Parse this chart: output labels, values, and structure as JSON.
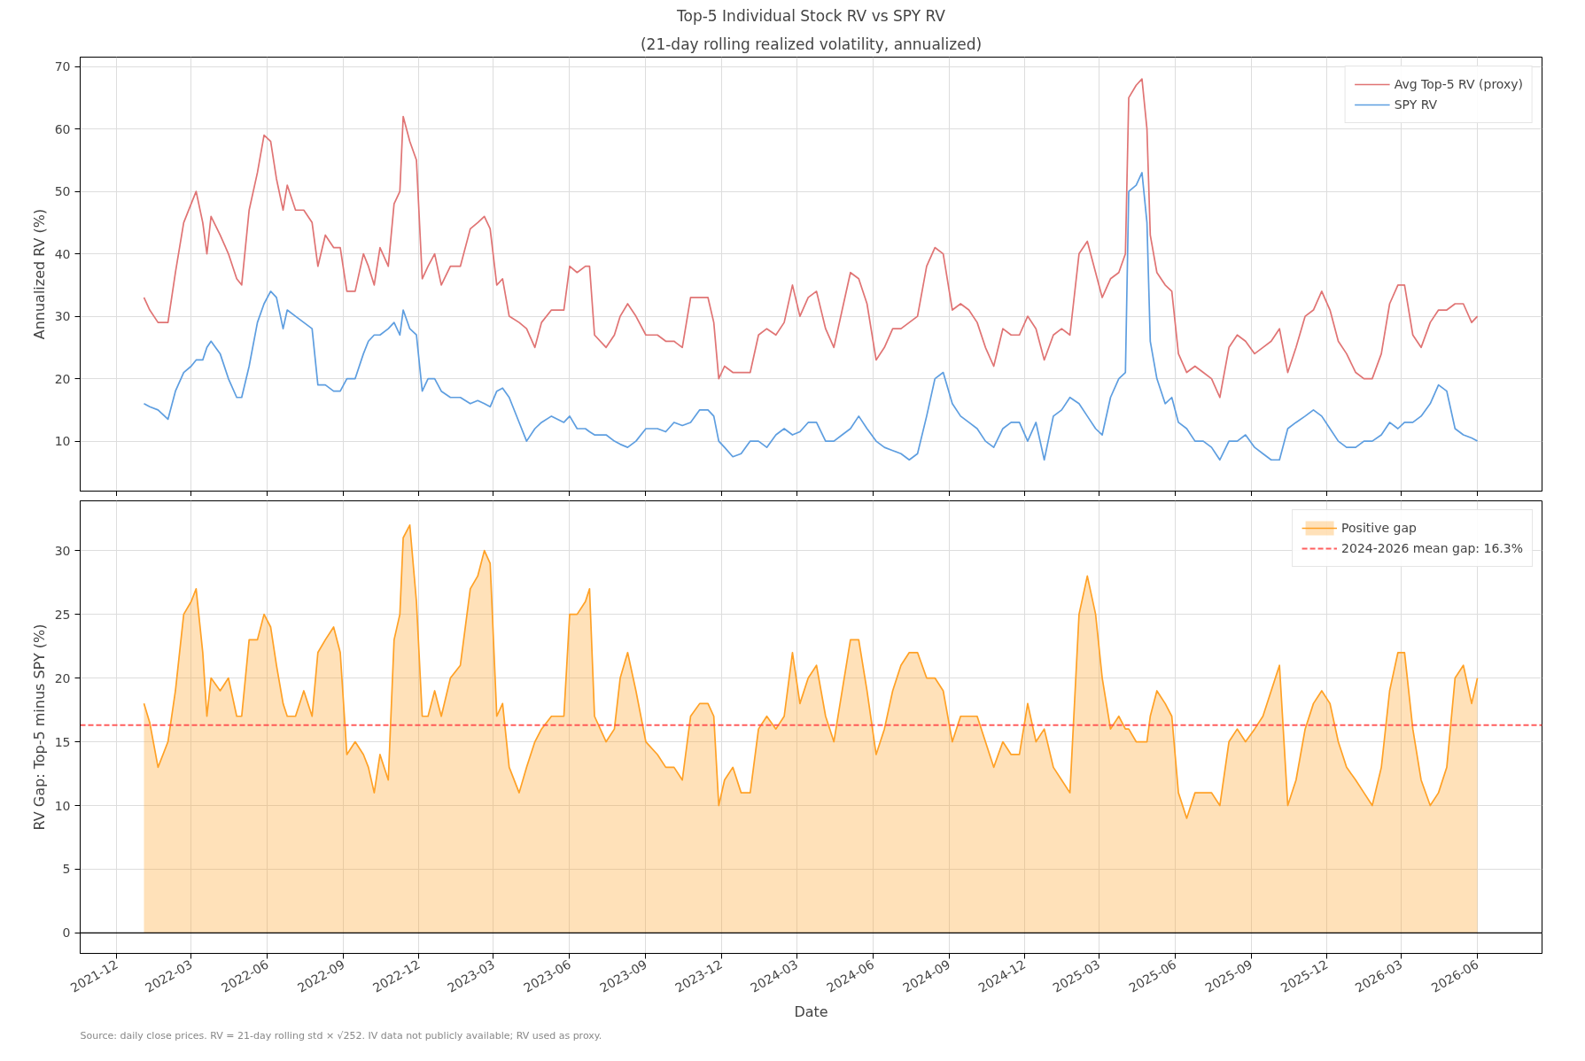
{
  "chart_data": [
    {
      "type": "line",
      "title": "Top-5 Individual Stock RV vs SPY RV",
      "subtitle": "(21-day rolling realized volatility, annualized)",
      "ylabel": "Annualized RV (%)",
      "x": [
        "2022-01-03",
        "2022-01-10",
        "2022-01-20",
        "2022-02-01",
        "2022-02-10",
        "2022-02-20",
        "2022-03-01",
        "2022-03-07",
        "2022-03-15",
        "2022-03-20",
        "2022-03-25",
        "2022-04-05",
        "2022-04-15",
        "2022-04-25",
        "2022-05-01",
        "2022-05-10",
        "2022-05-20",
        "2022-05-28",
        "2022-06-05",
        "2022-06-12",
        "2022-06-20",
        "2022-06-25",
        "2022-07-05",
        "2022-07-15",
        "2022-07-25",
        "2022-08-01",
        "2022-08-10",
        "2022-08-20",
        "2022-08-28",
        "2022-09-05",
        "2022-09-15",
        "2022-09-25",
        "2022-10-01",
        "2022-10-08",
        "2022-10-15",
        "2022-10-25",
        "2022-11-01",
        "2022-11-08",
        "2022-11-12",
        "2022-11-20",
        "2022-11-28",
        "2022-12-05",
        "2022-12-12",
        "2022-12-20",
        "2022-12-28",
        "2023-01-08",
        "2023-01-20",
        "2023-02-01",
        "2023-02-10",
        "2023-02-18",
        "2023-02-25",
        "2023-03-05",
        "2023-03-12",
        "2023-03-20",
        "2023-04-01",
        "2023-04-10",
        "2023-04-20",
        "2023-04-28",
        "2023-05-10",
        "2023-05-25",
        "2023-06-01",
        "2023-06-10",
        "2023-06-20",
        "2023-06-25",
        "2023-07-01",
        "2023-07-15",
        "2023-07-25",
        "2023-08-01",
        "2023-08-10",
        "2023-08-20",
        "2023-09-01",
        "2023-09-15",
        "2023-09-25",
        "2023-10-05",
        "2023-10-15",
        "2023-10-25",
        "2023-11-05",
        "2023-11-15",
        "2023-11-22",
        "2023-11-28",
        "2023-12-05",
        "2023-12-15",
        "2023-12-25",
        "2024-01-05",
        "2024-01-15",
        "2024-01-25",
        "2024-02-05",
        "2024-02-15",
        "2024-02-25",
        "2024-03-05",
        "2024-03-15",
        "2024-03-25",
        "2024-04-05",
        "2024-04-15",
        "2024-04-25",
        "2024-05-05",
        "2024-05-15",
        "2024-05-25",
        "2024-06-05",
        "2024-06-15",
        "2024-06-25",
        "2024-07-05",
        "2024-07-15",
        "2024-07-25",
        "2024-08-05",
        "2024-08-15",
        "2024-08-25",
        "2024-09-05",
        "2024-09-15",
        "2024-09-25",
        "2024-10-05",
        "2024-10-15",
        "2024-10-25",
        "2024-11-05",
        "2024-11-15",
        "2024-11-25",
        "2024-12-05",
        "2024-12-15",
        "2024-12-25",
        "2025-01-05",
        "2025-01-15",
        "2025-01-25",
        "2025-02-05",
        "2025-02-15",
        "2025-02-25",
        "2025-03-05",
        "2025-03-15",
        "2025-03-25",
        "2025-04-02",
        "2025-04-06",
        "2025-04-15",
        "2025-04-22",
        "2025-04-28",
        "2025-05-02",
        "2025-05-10",
        "2025-05-20",
        "2025-05-28",
        "2025-06-05",
        "2025-06-15",
        "2025-06-25",
        "2025-07-05",
        "2025-07-15",
        "2025-07-25",
        "2025-08-05",
        "2025-08-15",
        "2025-08-25",
        "2025-09-05",
        "2025-09-15",
        "2025-09-25",
        "2025-10-05",
        "2025-10-15",
        "2025-10-25",
        "2025-11-05",
        "2025-11-15",
        "2025-11-25",
        "2025-12-05",
        "2025-12-15",
        "2025-12-25",
        "2026-01-05",
        "2026-01-15",
        "2026-01-25",
        "2026-02-05",
        "2026-02-15",
        "2026-02-25",
        "2026-03-05",
        "2026-03-15",
        "2026-03-25",
        "2026-04-05",
        "2026-04-15",
        "2026-04-25",
        "2026-05-05",
        "2026-05-15",
        "2026-05-25",
        "2026-06-01"
      ],
      "series": [
        {
          "name": "Avg Top-5 RV (proxy)",
          "color": "#e07474",
          "values": [
            33,
            31,
            29,
            29,
            37,
            45,
            48,
            50,
            45,
            40,
            46,
            43,
            40,
            36,
            35,
            47,
            53,
            59,
            58,
            52,
            47,
            51,
            47,
            47,
            45,
            38,
            43,
            41,
            41,
            34,
            34,
            40,
            38,
            35,
            41,
            38,
            48,
            50,
            62,
            58,
            55,
            36,
            38,
            40,
            35,
            38,
            38,
            44,
            45,
            46,
            44,
            35,
            36,
            30,
            29,
            28,
            25,
            29,
            31,
            31,
            38,
            37,
            38,
            38,
            27,
            25,
            27,
            30,
            32,
            30,
            27,
            27,
            26,
            26,
            25,
            33,
            33,
            33,
            29,
            20,
            22,
            21,
            21,
            21,
            27,
            28,
            27,
            29,
            35,
            30,
            33,
            34,
            28,
            25,
            31,
            37,
            36,
            32,
            23,
            25,
            28,
            28,
            29,
            30,
            38,
            41,
            40,
            31,
            32,
            31,
            29,
            25,
            22,
            28,
            27,
            27,
            30,
            28,
            23,
            27,
            28,
            27,
            40,
            42,
            37,
            33,
            36,
            37,
            40,
            65,
            67,
            68,
            60,
            43,
            37,
            35,
            34,
            24,
            21,
            22,
            21,
            20,
            17,
            25,
            27,
            26,
            24,
            25,
            26,
            28,
            21,
            25,
            30,
            31,
            34,
            31,
            26,
            24,
            21,
            20,
            20,
            24,
            32,
            35,
            35,
            27,
            25,
            29,
            31,
            31,
            32,
            32,
            29,
            30
          ]
        },
        {
          "name": "SPY RV",
          "color": "#5e9ee0",
          "values": [
            16,
            15.5,
            15,
            13.5,
            18,
            21,
            22,
            23,
            23,
            25,
            26,
            24,
            20,
            17,
            17,
            22,
            29,
            32,
            34,
            33,
            28,
            31,
            30,
            29,
            28,
            19,
            19,
            18,
            18,
            20,
            20,
            24,
            26,
            27,
            27,
            28,
            29,
            27,
            31,
            28,
            27,
            18,
            20,
            20,
            18,
            17,
            17,
            16,
            16.5,
            16,
            15.5,
            18,
            18.5,
            17,
            13,
            10,
            12,
            13,
            14,
            13,
            14,
            12,
            12,
            11.5,
            11,
            11,
            10,
            9.5,
            9,
            10,
            12,
            12,
            11.5,
            13,
            12.5,
            13,
            15,
            15,
            14,
            10,
            9,
            7.5,
            8,
            10,
            10,
            9,
            11,
            12,
            11,
            11.5,
            13,
            13,
            10,
            10,
            11,
            12,
            14,
            12,
            10,
            9,
            8.5,
            8,
            7,
            8,
            14,
            20,
            21,
            16,
            14,
            13,
            12,
            10,
            9,
            12,
            13,
            13,
            10,
            13,
            7,
            14,
            15,
            17,
            16,
            14,
            12,
            11,
            17,
            20,
            21,
            50,
            51,
            53,
            45,
            26,
            20,
            16,
            17,
            13,
            12,
            10,
            10,
            9,
            7,
            10,
            10,
            11,
            9,
            8,
            7,
            7,
            12,
            13,
            14,
            15,
            14,
            12,
            10,
            9,
            9,
            10,
            10,
            11,
            13,
            12,
            13,
            13,
            14,
            16,
            19,
            18,
            12,
            11,
            10.5,
            10
          ]
        }
      ],
      "xlim": [
        "2021-10-18",
        "2026-08-18"
      ],
      "ylim": [
        2,
        71.5
      ],
      "xticks": [
        "2021-12",
        "2022-03",
        "2022-06",
        "2022-09",
        "2022-12",
        "2023-03",
        "2023-06",
        "2023-09",
        "2023-12",
        "2024-03",
        "2024-06",
        "2024-09",
        "2024-12",
        "2025-03",
        "2025-06",
        "2025-09",
        "2025-12",
        "2026-03",
        "2026-06"
      ],
      "yticks": [
        10,
        20,
        30,
        40,
        50,
        60,
        70
      ],
      "tick_labels": "y",
      "grid": true,
      "legend": "top right"
    },
    {
      "type": "area",
      "xlabel": "Date",
      "ylabel": "RV Gap: Top-5 minus SPY (%)",
      "x": [
        "2022-01-03",
        "2022-01-10",
        "2022-01-20",
        "2022-02-01",
        "2022-02-10",
        "2022-02-20",
        "2022-03-01",
        "2022-03-07",
        "2022-03-15",
        "2022-03-20",
        "2022-03-25",
        "2022-04-05",
        "2022-04-15",
        "2022-04-25",
        "2022-05-01",
        "2022-05-10",
        "2022-05-20",
        "2022-05-28",
        "2022-06-05",
        "2022-06-12",
        "2022-06-20",
        "2022-06-25",
        "2022-07-05",
        "2022-07-15",
        "2022-07-25",
        "2022-08-01",
        "2022-08-10",
        "2022-08-20",
        "2022-08-28",
        "2022-09-05",
        "2022-09-15",
        "2022-09-25",
        "2022-10-01",
        "2022-10-08",
        "2022-10-15",
        "2022-10-25",
        "2022-11-01",
        "2022-11-08",
        "2022-11-12",
        "2022-11-20",
        "2022-11-28",
        "2022-12-05",
        "2022-12-12",
        "2022-12-20",
        "2022-12-28",
        "2023-01-08",
        "2023-01-20",
        "2023-02-01",
        "2023-02-10",
        "2023-02-18",
        "2023-02-25",
        "2023-03-05",
        "2023-03-12",
        "2023-03-20",
        "2023-04-01",
        "2023-04-10",
        "2023-04-20",
        "2023-04-28",
        "2023-05-10",
        "2023-05-25",
        "2023-06-01",
        "2023-06-10",
        "2023-06-20",
        "2023-06-25",
        "2023-07-01",
        "2023-07-15",
        "2023-07-25",
        "2023-08-01",
        "2023-08-10",
        "2023-08-20",
        "2023-09-01",
        "2023-09-15",
        "2023-09-25",
        "2023-10-05",
        "2023-10-15",
        "2023-10-25",
        "2023-11-05",
        "2023-11-15",
        "2023-11-22",
        "2023-11-28",
        "2023-12-05",
        "2023-12-15",
        "2023-12-25",
        "2024-01-05",
        "2024-01-15",
        "2024-01-25",
        "2024-02-05",
        "2024-02-15",
        "2024-02-25",
        "2024-03-05",
        "2024-03-15",
        "2024-03-25",
        "2024-04-05",
        "2024-04-15",
        "2024-04-25",
        "2024-05-05",
        "2024-05-15",
        "2024-05-25",
        "2024-06-05",
        "2024-06-15",
        "2024-06-25",
        "2024-07-05",
        "2024-07-15",
        "2024-07-25",
        "2024-08-05",
        "2024-08-15",
        "2024-08-25",
        "2024-09-05",
        "2024-09-15",
        "2024-09-25",
        "2024-10-05",
        "2024-10-15",
        "2024-10-25",
        "2024-11-05",
        "2024-11-15",
        "2024-11-25",
        "2024-12-05",
        "2024-12-15",
        "2024-12-25",
        "2025-01-05",
        "2025-01-15",
        "2025-01-25",
        "2025-02-05",
        "2025-02-15",
        "2025-02-25",
        "2025-03-05",
        "2025-03-15",
        "2025-03-25",
        "2025-04-02",
        "2025-04-06",
        "2025-04-15",
        "2025-04-22",
        "2025-04-28",
        "2025-05-02",
        "2025-05-10",
        "2025-05-20",
        "2025-05-28",
        "2025-06-05",
        "2025-06-15",
        "2025-06-25",
        "2025-07-05",
        "2025-07-15",
        "2025-07-25",
        "2025-08-05",
        "2025-08-15",
        "2025-08-25",
        "2025-09-05",
        "2025-09-15",
        "2025-09-25",
        "2025-10-05",
        "2025-10-15",
        "2025-10-25",
        "2025-11-05",
        "2025-11-15",
        "2025-11-25",
        "2025-12-05",
        "2025-12-15",
        "2025-12-25",
        "2026-01-05",
        "2026-01-15",
        "2026-01-25",
        "2026-02-05",
        "2026-02-15",
        "2026-02-25",
        "2026-03-05",
        "2026-03-15",
        "2026-03-25",
        "2026-04-05",
        "2026-04-15",
        "2026-04-25",
        "2026-05-05",
        "2026-05-15",
        "2026-05-25",
        "2026-06-01"
      ],
      "series": [
        {
          "name": "Positive gap",
          "color": "#ffa126",
          "values": [
            18,
            16.5,
            13,
            15,
            19,
            25,
            26,
            27,
            22,
            17,
            20,
            19,
            20,
            17,
            17,
            23,
            23,
            25,
            24,
            21,
            18,
            17,
            17,
            19,
            17,
            22,
            23,
            24,
            22,
            14,
            15,
            14,
            13,
            11,
            14,
            12,
            23,
            25,
            31,
            32,
            26,
            17,
            17,
            19,
            17,
            20,
            21,
            27,
            28,
            30,
            29,
            17,
            18,
            13,
            11,
            13,
            15,
            16,
            17,
            17,
            25,
            25,
            26,
            27,
            17,
            15,
            16,
            20,
            22,
            19,
            15,
            14,
            13,
            13,
            12,
            17,
            18,
            18,
            17,
            10,
            12,
            13,
            11,
            11,
            16,
            17,
            16,
            17,
            22,
            18,
            20,
            21,
            17,
            15,
            19,
            23,
            23,
            19,
            14,
            16,
            19,
            21,
            22,
            22,
            20,
            20,
            19,
            15,
            17,
            17,
            17,
            15,
            13,
            15,
            14,
            14,
            18,
            15,
            16,
            13,
            12,
            11,
            25,
            28,
            25,
            20,
            16,
            17,
            16,
            16,
            15,
            15,
            15,
            17,
            19,
            18,
            17,
            11,
            9,
            11,
            11,
            11,
            10,
            15,
            16,
            15,
            16,
            17,
            19,
            21,
            10,
            12,
            16,
            18,
            19,
            18,
            15,
            13,
            12,
            11,
            10,
            13,
            19,
            22,
            22,
            16,
            12,
            10,
            11,
            13,
            20,
            21,
            18,
            20
          ]
        }
      ],
      "ref_lines": [
        {
          "axis": "y",
          "value": 0,
          "color": "#000000"
        },
        {
          "axis": "y",
          "value": 16.3,
          "label": "2024-2026 mean gap: 16.3%",
          "color": "#ff4d4d",
          "line_style": "dashed"
        }
      ],
      "annotations": [
        "Source: daily close prices. RV = 21-day rolling std × √252. IV data not publicly available; RV used as proxy."
      ],
      "xlim": [
        "2021-10-18",
        "2026-08-18"
      ],
      "ylim": [
        -1.6,
        33.9
      ],
      "xticks": [
        "2021-12",
        "2022-03",
        "2022-06",
        "2022-09",
        "2022-12",
        "2023-03",
        "2023-06",
        "2023-09",
        "2023-12",
        "2024-03",
        "2024-06",
        "2024-09",
        "2024-12",
        "2025-03",
        "2025-06",
        "2025-09",
        "2025-12",
        "2026-03",
        "2026-06"
      ],
      "yticks": [
        0,
        5,
        10,
        15,
        20,
        25,
        30
      ],
      "grid": true,
      "legend": "top right"
    }
  ]
}
